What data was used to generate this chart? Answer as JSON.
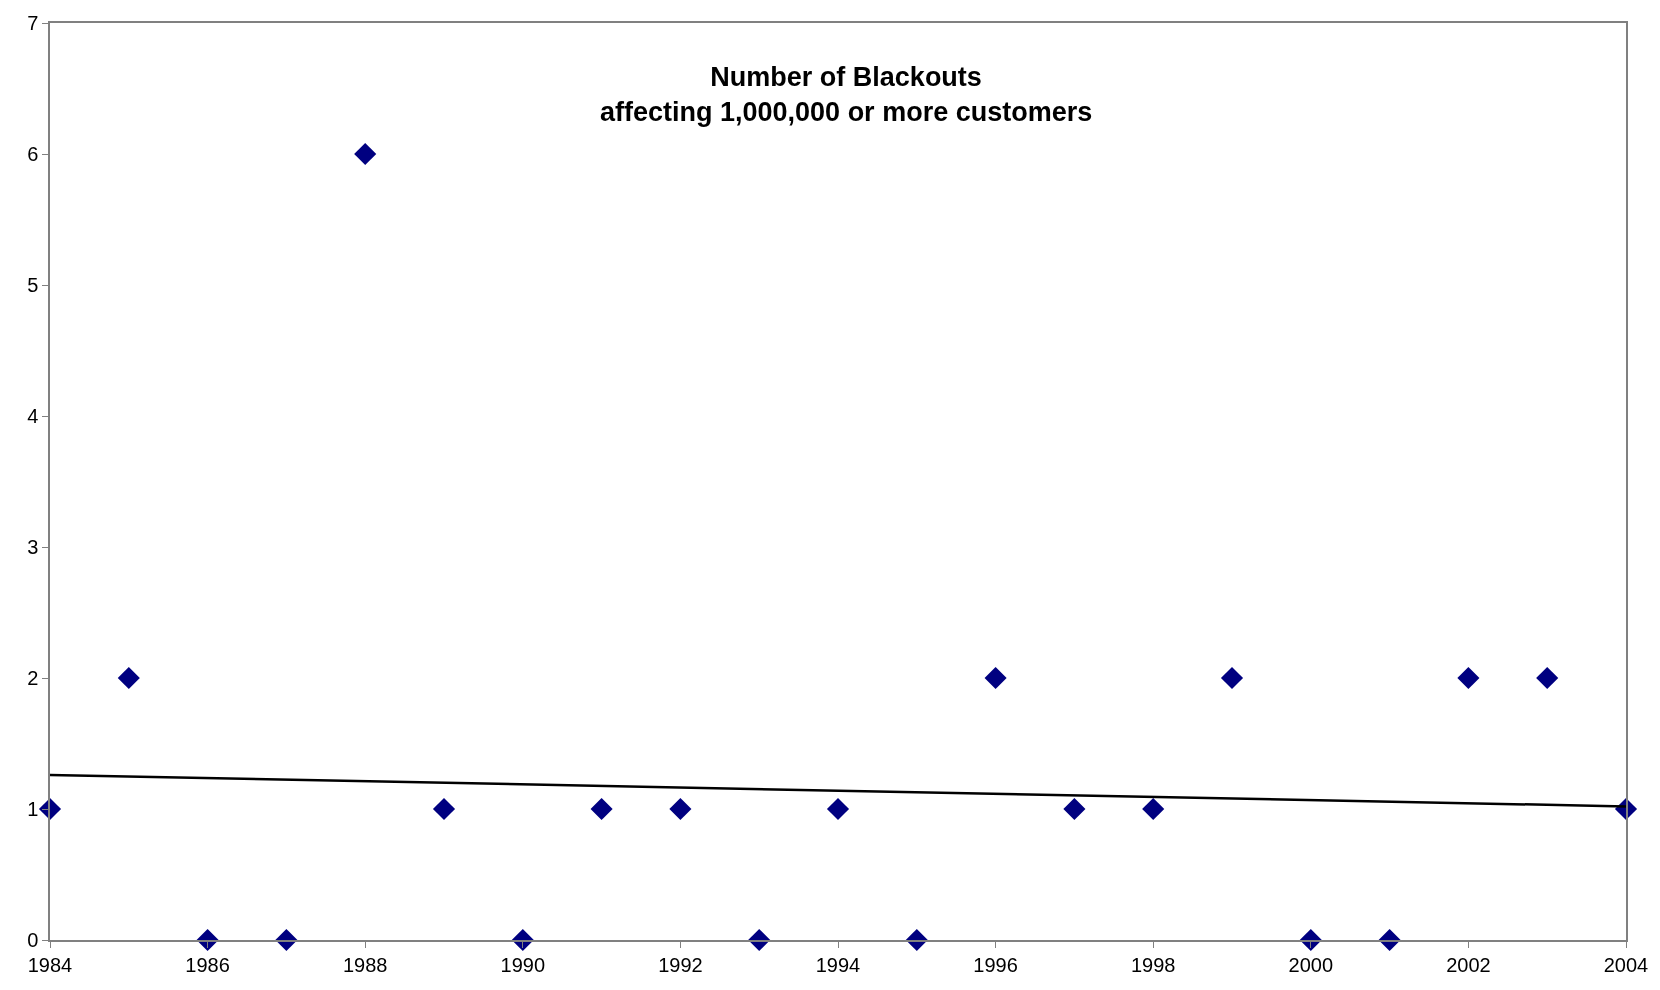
{
  "chart_data": {
    "type": "scatter",
    "title": "Number of Blackouts\naffecting 1,000,000 or more customers",
    "x": [
      1984,
      1985,
      1986,
      1987,
      1988,
      1989,
      1990,
      1991,
      1992,
      1993,
      1994,
      1995,
      1996,
      1997,
      1998,
      1999,
      2000,
      2001,
      2002,
      2003,
      2004
    ],
    "series": [
      {
        "color": "#000080",
        "marker": "diamond",
        "values": [
          1,
          2,
          0,
          0,
          6,
          1,
          0,
          1,
          1,
          0,
          1,
          0,
          2,
          1,
          1,
          2,
          0,
          0,
          2,
          2,
          1
        ]
      },
      {
        "type": "line",
        "color": "#000000",
        "x": [
          1984,
          2004
        ],
        "values": [
          1.26,
          1.02
        ],
        "line_style": "solid"
      }
    ],
    "xlim": [
      1984,
      2004
    ],
    "xticks": [
      1984,
      1986,
      1988,
      1990,
      1992,
      1994,
      1996,
      1998,
      2000,
      2002,
      2004
    ],
    "ylim": [
      0,
      7
    ],
    "yticks": [
      0,
      1,
      2,
      3,
      4,
      5,
      6,
      7
    ]
  }
}
